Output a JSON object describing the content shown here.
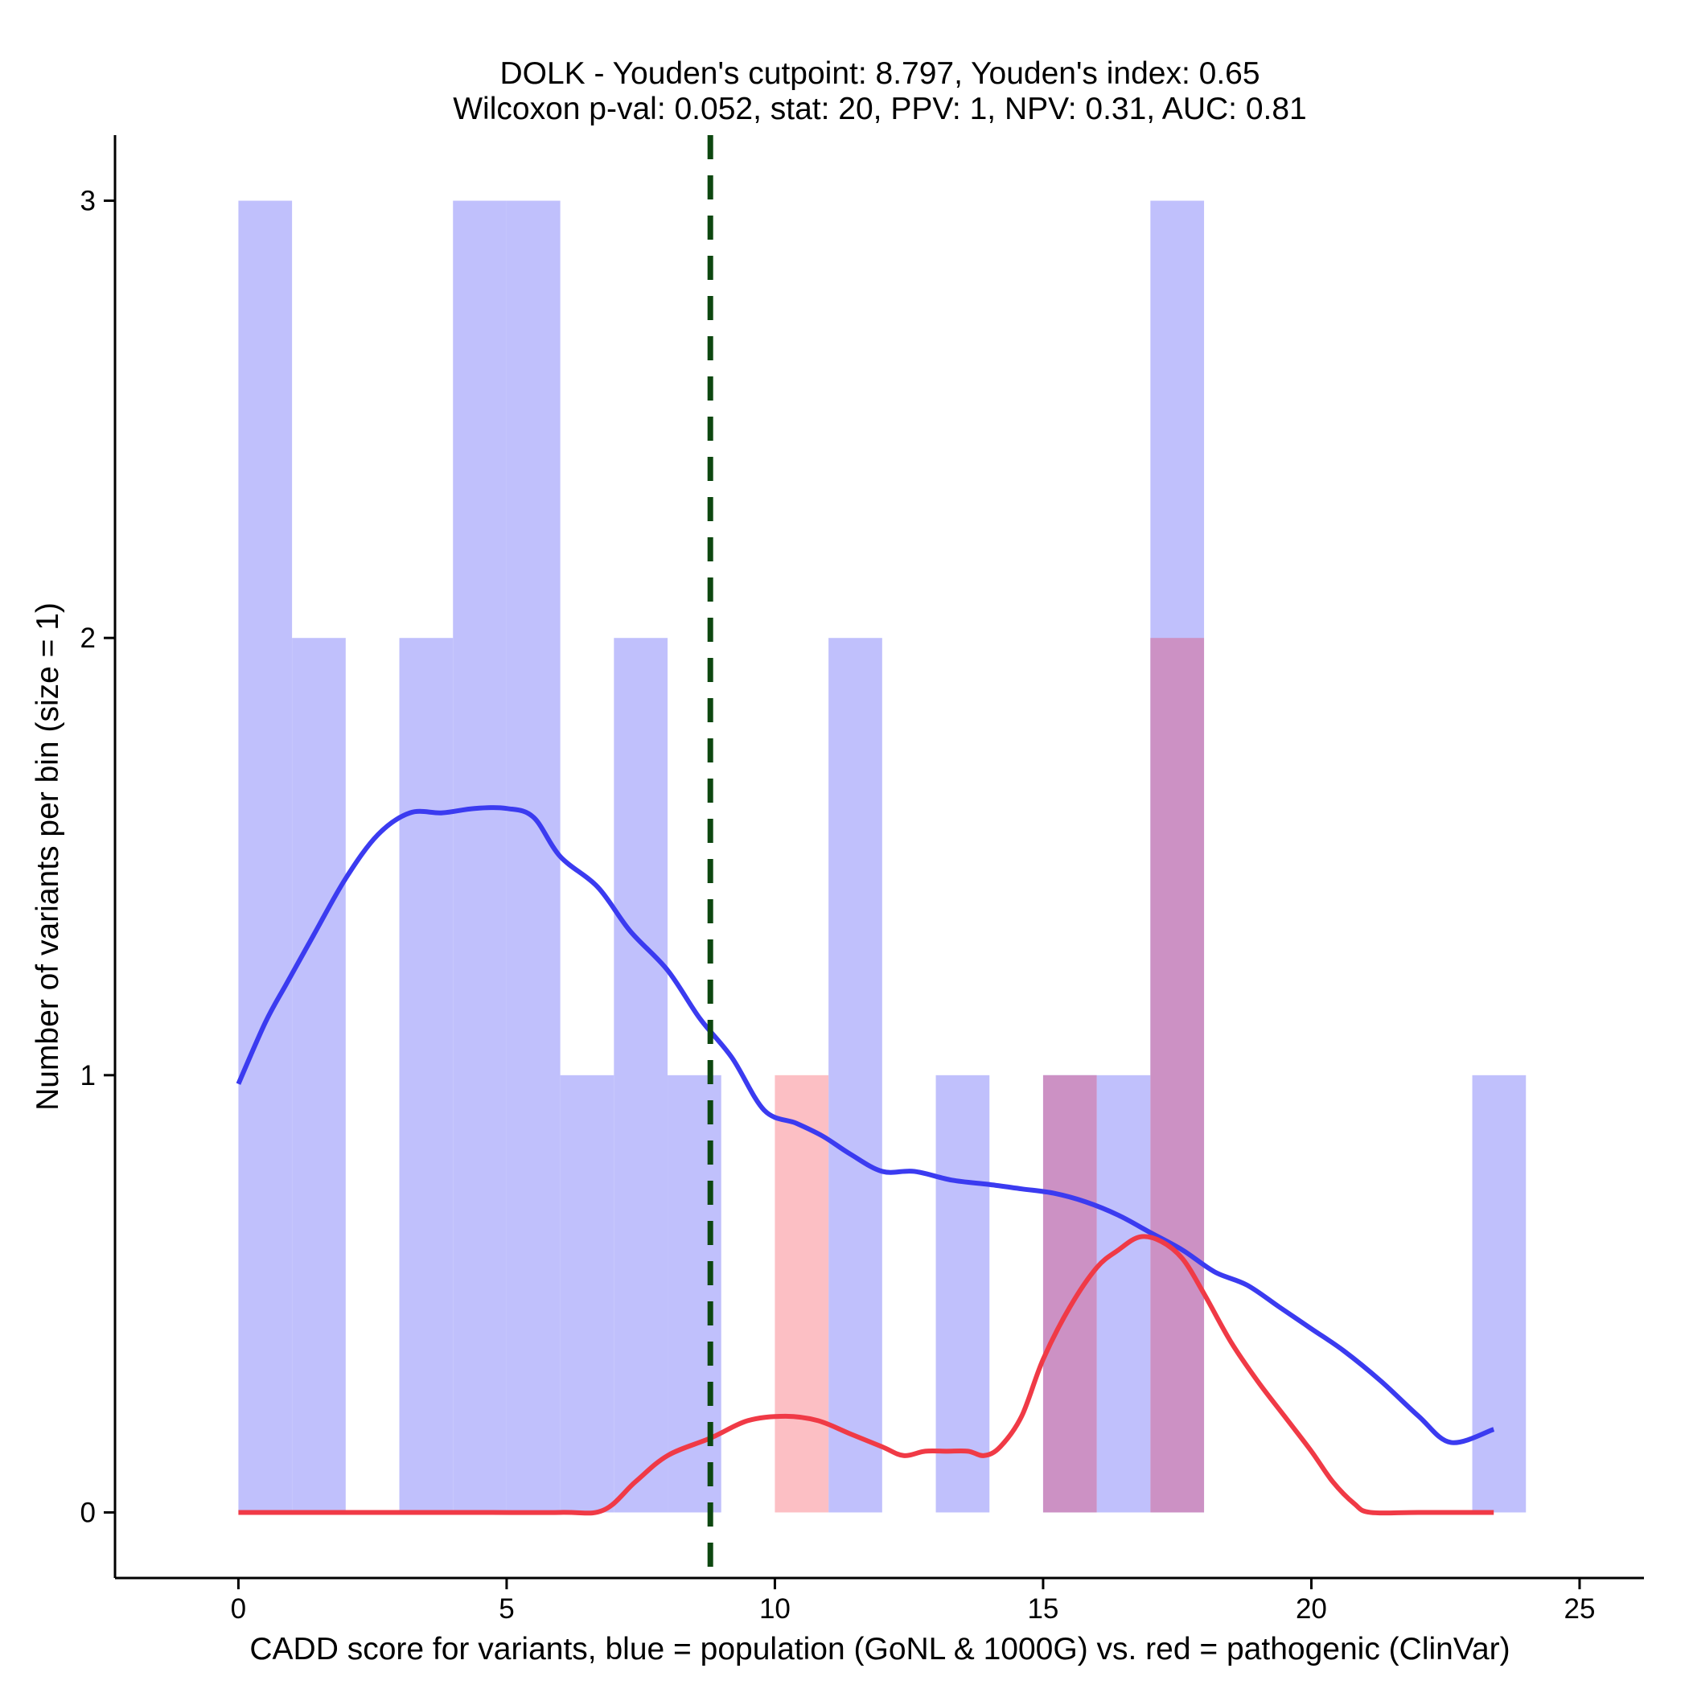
{
  "chart_data": {
    "type": "bar",
    "title": "DOLK - Youden's cutpoint: 8.797, Youden's index: 0.65",
    "subtitle": "Wilcoxon p-val: 0.052, stat: 20, PPV: 1, NPV: 0.31, AUC: 0.81",
    "xlabel": "CADD score for variants, blue = population (GoNL & 1000G) vs. red = pathogenic (ClinVar)",
    "ylabel": "Number of variants per bin (size = 1)",
    "xlim": [
      -2.3,
      26.2
    ],
    "ylim": [
      -0.15,
      3.15
    ],
    "x_ticks": [
      0,
      5,
      10,
      15,
      20,
      25
    ],
    "x_tick_labels": [
      "0",
      "5",
      "10",
      "15",
      "20",
      "25"
    ],
    "y_ticks": [
      0,
      1,
      2,
      3
    ],
    "y_tick_labels": [
      "0",
      "1",
      "2",
      "3"
    ],
    "bin_width": 1,
    "cutpoint": 8.797,
    "colors": {
      "population_bar": "#c0c0fc",
      "pathogenic_bar": "#fcbfc4",
      "overlap_bar": "#cc91c4",
      "population_line": "#3b3bf0",
      "pathogenic_line": "#f03a46",
      "cutpoint_line": "#0d4710",
      "axis": "#000000"
    },
    "series": [
      {
        "name": "population (GoNL & 1000G)",
        "bin_starts": [
          0,
          1,
          3,
          4,
          5,
          6,
          7,
          8,
          11,
          13,
          15,
          16,
          17,
          23
        ],
        "values": [
          3,
          2,
          2,
          3,
          3,
          1,
          2,
          1,
          2,
          1,
          1,
          1,
          3,
          1
        ]
      },
      {
        "name": "pathogenic (ClinVar)",
        "bin_starts": [
          10,
          15,
          17
        ],
        "values": [
          1,
          1,
          2
        ]
      }
    ],
    "density_lines": [
      {
        "name": "population density",
        "x": [
          0,
          0.5,
          0.9,
          1.4,
          2,
          2.6,
          3.2,
          3.8,
          4.4,
          5,
          5.5,
          6,
          6.7,
          7.3,
          8,
          8.6,
          9.2,
          9.8,
          10.4,
          10.9,
          11.4,
          12,
          12.6,
          13.3,
          14,
          14.6,
          15.2,
          15.8,
          16.4,
          17,
          17.6,
          18.2,
          18.8,
          19.4,
          20,
          20.6,
          21.3,
          22,
          22.6,
          23.4
        ],
        "y": [
          0.98,
          1.12,
          1.21,
          1.32,
          1.45,
          1.55,
          1.6,
          1.6,
          1.61,
          1.61,
          1.59,
          1.5,
          1.43,
          1.33,
          1.24,
          1.13,
          1.04,
          0.92,
          0.89,
          0.86,
          0.82,
          0.78,
          0.78,
          0.76,
          0.75,
          0.74,
          0.73,
          0.71,
          0.68,
          0.64,
          0.6,
          0.55,
          0.52,
          0.47,
          0.42,
          0.37,
          0.3,
          0.22,
          0.16,
          0.19
        ]
      },
      {
        "name": "pathogenic density",
        "x": [
          0,
          2,
          4,
          6,
          6.8,
          7.4,
          8,
          8.8,
          9.5,
          10.2,
          10.8,
          11.4,
          12,
          12.4,
          12.8,
          13.2,
          13.6,
          13.9,
          14.2,
          14.6,
          15,
          15.5,
          16,
          16.4,
          16.8,
          17.2,
          17.6,
          18,
          18.5,
          19,
          19.5,
          20,
          20.4,
          20.8,
          21.1,
          22,
          23.4
        ],
        "y": [
          0,
          0,
          0,
          0,
          0.005,
          0.07,
          0.13,
          0.17,
          0.21,
          0.22,
          0.21,
          0.18,
          0.15,
          0.13,
          0.14,
          0.14,
          0.14,
          0.13,
          0.15,
          0.22,
          0.35,
          0.47,
          0.56,
          0.6,
          0.63,
          0.62,
          0.58,
          0.5,
          0.39,
          0.3,
          0.22,
          0.14,
          0.07,
          0.02,
          0,
          0,
          0
        ]
      }
    ]
  }
}
